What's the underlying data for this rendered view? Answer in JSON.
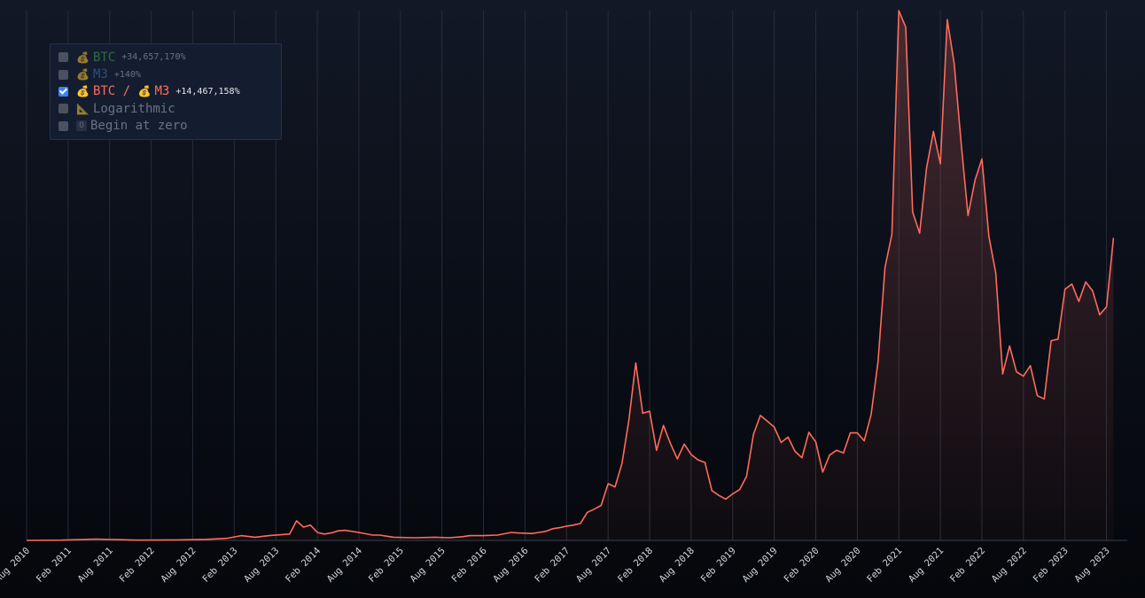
{
  "legend": {
    "items": [
      {
        "icon": "💰",
        "icon_name": "money-bag-icon",
        "label": "BTC",
        "change": "+34,657,170%",
        "checked": false,
        "color": "#2f6b3e"
      },
      {
        "icon": "💰",
        "icon_name": "money-bag-icon",
        "label": "M3",
        "change": "+140%",
        "checked": false,
        "color": "#2a4f78"
      },
      {
        "icon": "💰",
        "icon_name": "money-bag-icon",
        "label": "BTC / ",
        "label2": "M3",
        "change": "+14,467,158%",
        "checked": true,
        "color": "#ff6b5b"
      },
      {
        "icon": "📐",
        "icon_name": "triangular-ruler-icon",
        "label": "Logarithmic",
        "checked": false,
        "color": "#6b7280"
      },
      {
        "icon": "0",
        "icon_name": "zero-key-icon",
        "label": "Begin at zero",
        "checked": false,
        "color": "#6b7280"
      }
    ]
  },
  "chart_data": {
    "type": "area",
    "series": [
      {
        "name": "BTC / M3",
        "color": "#ff6b5b"
      }
    ],
    "x_ticks": [
      "Aug 2010",
      "Feb 2011",
      "Aug 2011",
      "Feb 2012",
      "Aug 2012",
      "Feb 2013",
      "Aug 2013",
      "Feb 2014",
      "Aug 2014",
      "Feb 2015",
      "Aug 2015",
      "Feb 2016",
      "Aug 2016",
      "Feb 2017",
      "Aug 2017",
      "Feb 2018",
      "Aug 2018",
      "Feb 2019",
      "Aug 2019",
      "Feb 2020",
      "Aug 2020",
      "Feb 2021",
      "Aug 2021",
      "Feb 2022",
      "Aug 2022",
      "Feb 2023",
      "Aug 2023"
    ],
    "grid": true,
    "legend_position": "top-left",
    "y_axis_visible": false,
    "ylim": [
      0,
      100
    ],
    "x_range": [
      "2010-08",
      "2023-11"
    ],
    "points": [
      [
        "2010-08",
        0.0
      ],
      [
        "2011-01",
        0.05
      ],
      [
        "2011-06",
        0.25
      ],
      [
        "2011-12",
        0.05
      ],
      [
        "2012-06",
        0.1
      ],
      [
        "2012-10",
        0.2
      ],
      [
        "2013-01",
        0.4
      ],
      [
        "2013-03",
        0.9
      ],
      [
        "2013-05",
        0.6
      ],
      [
        "2013-07",
        0.9
      ],
      [
        "2013-10",
        1.2
      ],
      [
        "2013-11",
        3.7
      ],
      [
        "2013-12",
        2.5
      ],
      [
        "2014-01",
        2.9
      ],
      [
        "2014-02",
        1.5
      ],
      [
        "2014-03",
        1.2
      ],
      [
        "2014-04",
        1.4
      ],
      [
        "2014-05",
        1.8
      ],
      [
        "2014-06",
        1.9
      ],
      [
        "2014-08",
        1.5
      ],
      [
        "2014-10",
        1.0
      ],
      [
        "2014-11",
        1.0
      ],
      [
        "2014-12",
        0.8
      ],
      [
        "2015-01",
        0.6
      ],
      [
        "2015-04",
        0.5
      ],
      [
        "2015-07",
        0.6
      ],
      [
        "2015-09",
        0.5
      ],
      [
        "2015-11",
        0.7
      ],
      [
        "2015-12",
        0.9
      ],
      [
        "2016-02",
        0.9
      ],
      [
        "2016-04",
        1.0
      ],
      [
        "2016-06",
        1.5
      ],
      [
        "2016-07",
        1.4
      ],
      [
        "2016-09",
        1.3
      ],
      [
        "2016-10",
        1.5
      ],
      [
        "2016-11",
        1.7
      ],
      [
        "2016-12",
        2.2
      ],
      [
        "2017-01",
        2.4
      ],
      [
        "2017-02",
        2.7
      ],
      [
        "2017-03",
        2.9
      ],
      [
        "2017-04",
        3.2
      ],
      [
        "2017-05",
        5.3
      ],
      [
        "2017-06",
        5.9
      ],
      [
        "2017-07",
        6.6
      ],
      [
        "2017-08",
        10.7
      ],
      [
        "2017-09",
        10.1
      ],
      [
        "2017-10",
        14.5
      ],
      [
        "2017-11",
        22.7
      ],
      [
        "2017-12",
        33.5
      ],
      [
        "2018-01",
        24.0
      ],
      [
        "2018-02",
        24.4
      ],
      [
        "2018-03",
        17.0
      ],
      [
        "2018-04",
        21.7
      ],
      [
        "2018-05",
        18.3
      ],
      [
        "2018-06",
        15.4
      ],
      [
        "2018-07",
        18.2
      ],
      [
        "2018-08",
        16.2
      ],
      [
        "2018-09",
        15.2
      ],
      [
        "2018-10",
        14.7
      ],
      [
        "2018-11",
        9.4
      ],
      [
        "2018-12",
        8.5
      ],
      [
        "2019-01",
        7.8
      ],
      [
        "2019-02",
        8.8
      ],
      [
        "2019-03",
        9.6
      ],
      [
        "2019-04",
        12.1
      ],
      [
        "2019-05",
        20.0
      ],
      [
        "2019-06",
        23.6
      ],
      [
        "2019-07",
        22.5
      ],
      [
        "2019-08",
        21.4
      ],
      [
        "2019-09",
        18.5
      ],
      [
        "2019-10",
        19.5
      ],
      [
        "2019-11",
        16.8
      ],
      [
        "2019-12",
        15.6
      ],
      [
        "2020-01",
        20.4
      ],
      [
        "2020-02",
        18.6
      ],
      [
        "2020-03",
        12.9
      ],
      [
        "2020-04",
        16.1
      ],
      [
        "2020-05",
        17.0
      ],
      [
        "2020-06",
        16.5
      ],
      [
        "2020-07",
        20.3
      ],
      [
        "2020-08",
        20.3
      ],
      [
        "2020-09",
        18.8
      ],
      [
        "2020-10",
        23.8
      ],
      [
        "2020-11",
        33.8
      ],
      [
        "2020-12",
        51.5
      ],
      [
        "2021-01",
        57.8
      ],
      [
        "2021-02",
        100.0
      ],
      [
        "2021-03",
        96.9
      ],
      [
        "2021-04",
        62.0
      ],
      [
        "2021-05",
        58.0
      ],
      [
        "2021-06",
        70.3
      ],
      [
        "2021-07",
        77.2
      ],
      [
        "2021-08",
        71.1
      ],
      [
        "2021-09",
        98.3
      ],
      [
        "2021-10",
        90.0
      ],
      [
        "2021-11",
        75.1
      ],
      [
        "2021-12",
        61.3
      ],
      [
        "2022-01",
        68.0
      ],
      [
        "2022-02",
        72.0
      ],
      [
        "2022-03",
        57.4
      ],
      [
        "2022-04",
        50.5
      ],
      [
        "2022-05",
        31.4
      ],
      [
        "2022-06",
        36.7
      ],
      [
        "2022-07",
        31.8
      ],
      [
        "2022-08",
        31.0
      ],
      [
        "2022-09",
        33.0
      ],
      [
        "2022-10",
        27.3
      ],
      [
        "2022-11",
        26.7
      ],
      [
        "2022-12",
        37.7
      ],
      [
        "2023-01",
        38.0
      ],
      [
        "2023-02",
        47.4
      ],
      [
        "2023-03",
        48.4
      ],
      [
        "2023-04",
        45.1
      ],
      [
        "2023-05",
        48.8
      ],
      [
        "2023-06",
        47.1
      ],
      [
        "2023-07",
        42.6
      ],
      [
        "2023-08",
        44.1
      ],
      [
        "2023-09",
        57.1
      ]
    ]
  }
}
